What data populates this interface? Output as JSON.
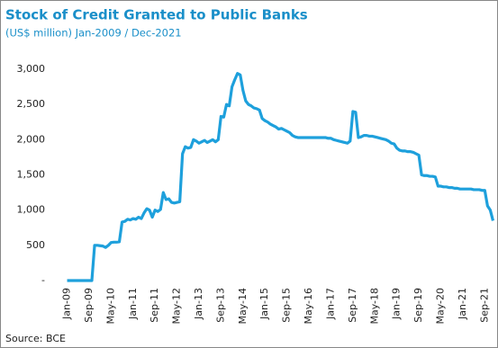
{
  "chart_data": {
    "type": "line",
    "title": "Stock of Credit Granted to Public Banks",
    "subtitle": "(US$ million) Jan-2009 / Dec-2021",
    "source": "Source: BCE",
    "color": "#1ea0dc",
    "categories": [
      "Jan-09",
      null,
      null,
      null,
      null,
      null,
      null,
      null,
      "Sep-09",
      null,
      null,
      null,
      null,
      null,
      null,
      null,
      "May-10",
      null,
      null,
      null,
      null,
      null,
      null,
      null,
      "Jan-11",
      null,
      null,
      null,
      null,
      null,
      null,
      null,
      "Sep-11",
      null,
      null,
      null,
      null,
      null,
      null,
      null,
      "May-12",
      null,
      null,
      null,
      null,
      null,
      null,
      null,
      "Jan-13",
      null,
      null,
      null,
      null,
      null,
      null,
      null,
      "Sep-13",
      null,
      null,
      null,
      null,
      null,
      null,
      null,
      "May-14",
      null,
      null,
      null,
      null,
      null,
      null,
      null,
      "Jan-15",
      null,
      null,
      null,
      null,
      null,
      null,
      null,
      "Sep-15",
      null,
      null,
      null,
      null,
      null,
      null,
      null,
      "May-16",
      null,
      null,
      null,
      null,
      null,
      null,
      null,
      "Jan-17",
      null,
      null,
      null,
      null,
      null,
      null,
      null,
      "Sep-17",
      null,
      null,
      null,
      null,
      null,
      null,
      null,
      "May-18",
      null,
      null,
      null,
      null,
      null,
      null,
      null,
      "Jan-19",
      null,
      null,
      null,
      null,
      null,
      null,
      null,
      "Sep-19",
      null,
      null,
      null,
      null,
      null,
      null,
      null,
      "May-20",
      null,
      null,
      null,
      null,
      null,
      null,
      null,
      "Jan-21",
      null,
      null,
      null,
      null,
      null,
      null,
      null,
      "Sep-21",
      null,
      null,
      null
    ],
    "values": [
      0,
      0,
      0,
      0,
      0,
      0,
      0,
      0,
      0,
      0,
      500,
      500,
      495,
      490,
      470,
      500,
      540,
      545,
      545,
      550,
      830,
      840,
      870,
      860,
      880,
      870,
      900,
      880,
      960,
      1020,
      1000,
      900,
      1000,
      980,
      1010,
      1250,
      1150,
      1160,
      1110,
      1100,
      1110,
      1120,
      1800,
      1900,
      1880,
      1890,
      2000,
      1980,
      1950,
      1970,
      1990,
      1960,
      1980,
      2000,
      1970,
      2000,
      2330,
      2320,
      2500,
      2480,
      2750,
      2850,
      2940,
      2920,
      2700,
      2550,
      2500,
      2480,
      2450,
      2440,
      2420,
      2300,
      2270,
      2250,
      2220,
      2200,
      2180,
      2150,
      2160,
      2140,
      2120,
      2100,
      2060,
      2040,
      2030,
      2030,
      2030,
      2030,
      2030,
      2030,
      2030,
      2030,
      2030,
      2030,
      2030,
      2020,
      2020,
      2000,
      1990,
      1980,
      1970,
      1960,
      1950,
      1980,
      2400,
      2390,
      2030,
      2040,
      2060,
      2060,
      2050,
      2050,
      2040,
      2030,
      2020,
      2010,
      2000,
      1980,
      1950,
      1940,
      1880,
      1850,
      1840,
      1840,
      1830,
      1830,
      1820,
      1800,
      1780,
      1500,
      1490,
      1490,
      1480,
      1480,
      1470,
      1340,
      1340,
      1330,
      1330,
      1320,
      1320,
      1310,
      1310,
      1300,
      1300,
      1300,
      1300,
      1300,
      1290,
      1290,
      1290,
      1280,
      1280,
      1060,
      1000,
      850
    ],
    "ylim": [
      0,
      3000
    ],
    "yticks": [
      {
        "value": 0,
        "label": "-"
      },
      500,
      {
        "value": 1000,
        "label": "1,000"
      },
      {
        "value": 1500,
        "label": "1,500"
      },
      {
        "value": 2000,
        "label": "2,000"
      },
      {
        "value": 2500,
        "label": "2,500"
      },
      {
        "value": 3000,
        "label": "3,000"
      }
    ]
  }
}
